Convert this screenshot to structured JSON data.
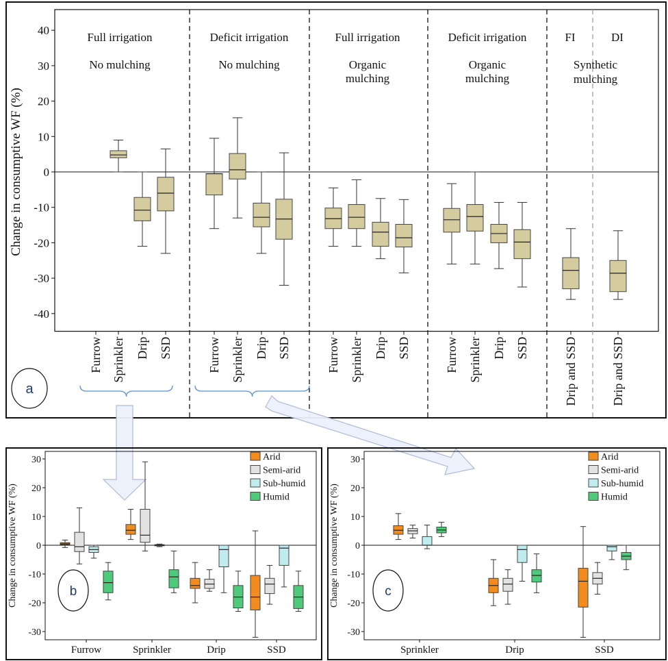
{
  "chart_data": [
    {
      "panel": "a",
      "type": "box",
      "ylabel": "Change in consumptive WF (%)",
      "ylim": [
        -45,
        42
      ],
      "yticks": [
        -40,
        -30,
        -20,
        -10,
        0,
        10,
        20,
        30,
        40
      ],
      "reference_line": 0,
      "grid": false,
      "legend": "none",
      "box_color": "#d4cc9e",
      "groups": [
        {
          "line1": "Full irrigation",
          "line2": "No mulching",
          "line3": "",
          "boxes": [
            {
              "label": "Furrow",
              "stats": null
            },
            {
              "label": "Sprinkler",
              "stats": [
                0,
                4,
                4.8,
                6,
                9
              ]
            },
            {
              "label": "Drip",
              "stats": [
                -21,
                -13.8,
                -10.8,
                -7.2,
                0
              ]
            },
            {
              "label": "SSD",
              "stats": [
                -23,
                -11,
                -6,
                -1.5,
                6.5
              ]
            }
          ]
        },
        {
          "line1": "Deficit irrigation",
          "line2": "No mulching",
          "line3": "",
          "boxes": [
            {
              "label": "Furrow",
              "stats": [
                -16,
                -6.5,
                -0.5,
                -0.5,
                9.5
              ]
            },
            {
              "label": "Sprinkler",
              "stats": [
                -13,
                -2,
                0.6,
                5.2,
                15.3
              ]
            },
            {
              "label": "Drip",
              "stats": [
                -23,
                -15.5,
                -12.8,
                -8.8,
                0
              ]
            },
            {
              "label": "SSD",
              "stats": [
                -32,
                -19,
                -13.3,
                -7.7,
                5.4
              ]
            }
          ]
        },
        {
          "line1": "Full irrigation",
          "line2": "Organic",
          "line3": "mulching",
          "boxes": [
            {
              "label": "Furrow",
              "stats": [
                -21,
                -16,
                -13.2,
                -10.2,
                -4.5
              ]
            },
            {
              "label": "Sprinkler",
              "stats": [
                -21,
                -16,
                -12.8,
                -9.2,
                -2.2
              ]
            },
            {
              "label": "Drip",
              "stats": [
                -24.5,
                -21,
                -17,
                -14.2,
                -7.5
              ]
            },
            {
              "label": "SSD",
              "stats": [
                -28.5,
                -21.2,
                -18.6,
                -14.8,
                -7.8
              ]
            }
          ]
        },
        {
          "line1": "Deficit irrigation",
          "line2": "Organic",
          "line3": "mulching",
          "boxes": [
            {
              "label": "Furrow",
              "stats": [
                -26,
                -17,
                -13.5,
                -10.3,
                -3.3
              ]
            },
            {
              "label": "Sprinkler",
              "stats": [
                -26,
                -16.7,
                -12.6,
                -9.2,
                0
              ]
            },
            {
              "label": "Drip",
              "stats": [
                -27.3,
                -20,
                -17.4,
                -14.8,
                -8.6
              ]
            },
            {
              "label": "SSD",
              "stats": [
                -32.5,
                -24.5,
                -19.8,
                -16.3,
                -8.6
              ]
            }
          ]
        },
        {
          "line1": "FI",
          "line2": "",
          "line3": "",
          "boxes": [
            {
              "label": "Drip and SSD",
              "stats": [
                -36,
                -33,
                -27.8,
                -24.2,
                -16
              ]
            }
          ]
        },
        {
          "line1": "DI",
          "line2": "",
          "line3": "",
          "boxes": [
            {
              "label": "Drip and SSD",
              "stats": [
                -36,
                -33.8,
                -28.6,
                -25,
                -16.6
              ]
            }
          ]
        }
      ],
      "shared_label": {
        "line1": "Synthetic",
        "line2": "mulching"
      },
      "panel_label": "a"
    },
    {
      "panel": "b",
      "type": "box",
      "ylabel": "Change in consumptive WF (%)",
      "ylim": [
        -33,
        33
      ],
      "yticks": [
        -30,
        -20,
        -10,
        0,
        10,
        20,
        30
      ],
      "reference_line": 0,
      "grid": false,
      "legend": "top-right",
      "categories": [
        "Furrow",
        "Sprinkler",
        "Drip",
        "SSD"
      ],
      "series": [
        {
          "name": "Arid",
          "color": "#f28c1e",
          "stats": [
            [
              -0.8,
              0.2,
              0.5,
              0.9,
              1.8
            ],
            [
              2,
              3.8,
              5.2,
              7.2,
              12.5
            ],
            [
              -20,
              -15,
              -14,
              -11.5,
              -6
            ],
            [
              -32,
              -22.5,
              -18,
              -10.5,
              5
            ]
          ]
        },
        {
          "name": "Semi-arid",
          "color": "#e2e2e2",
          "stats": [
            [
              -6.5,
              -2.2,
              -0.5,
              4.5,
              13
            ],
            [
              -2,
              1,
              3.5,
              12.5,
              29
            ],
            [
              -16,
              -15,
              -13.5,
              -11.8,
              -8.5
            ],
            [
              -20.5,
              -16.8,
              -13.5,
              -11.5,
              -7
            ]
          ]
        },
        {
          "name": "Sub-humid",
          "color": "#bfecec",
          "stats": [
            [
              -4.5,
              -2.5,
              -1.5,
              -0.5,
              0
            ],
            [
              -0.5,
              -0.2,
              0,
              0.2,
              0.4
            ],
            [
              -16.5,
              -7.5,
              -1.5,
              0,
              0
            ],
            [
              -14.5,
              -7,
              -1,
              0,
              0
            ]
          ]
        },
        {
          "name": "Humid",
          "color": "#4fc97a",
          "stats": [
            [
              -19,
              -16.5,
              -13,
              -9,
              -6
            ],
            [
              -16.5,
              -14.8,
              -11,
              -8.5,
              -2
            ],
            [
              -23,
              -21.8,
              -18,
              -14,
              -9
            ],
            [
              -23,
              -22,
              -18,
              -14,
              -9
            ]
          ]
        }
      ],
      "panel_label": "b"
    },
    {
      "panel": "c",
      "type": "box",
      "ylabel": "Change in consumptive WF (%)",
      "ylim": [
        -33,
        33
      ],
      "yticks": [
        -30,
        -20,
        -10,
        0,
        10,
        20,
        30
      ],
      "reference_line": 0,
      "grid": false,
      "legend": "top-right",
      "categories": [
        "Sprinkler",
        "Drip",
        "SSD"
      ],
      "series": [
        {
          "name": "Arid",
          "color": "#f28c1e",
          "stats": [
            [
              2,
              3.8,
              5.2,
              6.8,
              11
            ],
            [
              -21,
              -16.5,
              -14,
              -11.5,
              -5
            ],
            [
              -32,
              -21.5,
              -12.5,
              -8,
              6.5
            ]
          ]
        },
        {
          "name": "Semi-arid",
          "color": "#e2e2e2",
          "stats": [
            [
              2.5,
              4,
              5,
              5.8,
              7
            ],
            [
              -20.5,
              -16,
              -13.5,
              -11.5,
              -8.5
            ],
            [
              -17,
              -13.5,
              -11.5,
              -9.5,
              -6
            ]
          ]
        },
        {
          "name": "Sub-humid",
          "color": "#bfecec",
          "stats": [
            [
              -1.2,
              0,
              0,
              3,
              7
            ],
            [
              -12.5,
              -6,
              -1.5,
              0,
              0
            ],
            [
              -5,
              -2,
              -0.5,
              0,
              0
            ]
          ]
        },
        {
          "name": "Humid",
          "color": "#4fc97a",
          "stats": [
            [
              3,
              4.3,
              5.3,
              6.3,
              8
            ],
            [
              -16.5,
              -12.8,
              -10.5,
              -8.5,
              -3
            ],
            [
              -8.5,
              -5,
              -3.8,
              -2.5,
              0
            ]
          ]
        }
      ],
      "panel_label": "c"
    }
  ]
}
